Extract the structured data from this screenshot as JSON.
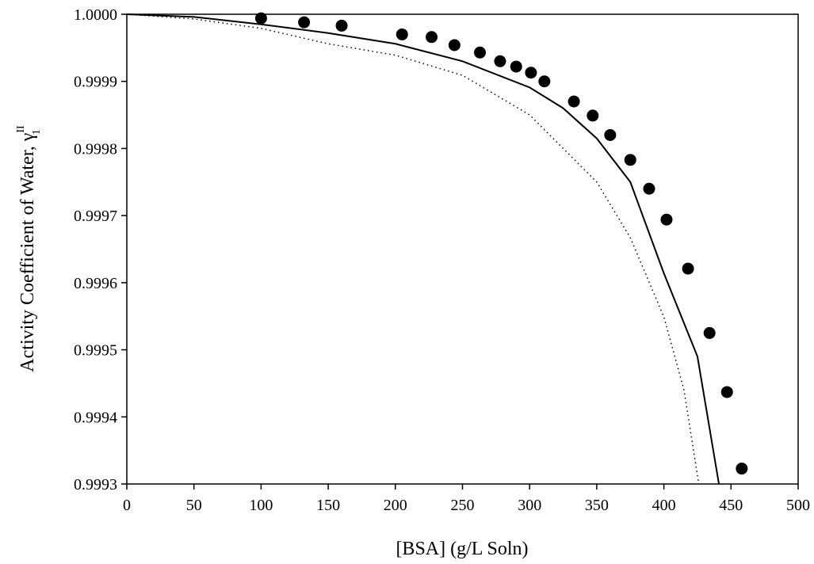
{
  "chart_data": {
    "type": "scatter",
    "x_label": "[BSA] (g/L Soln)",
    "y_label": "Activity  Coefficient  of  Water, γ",
    "y_label_sup": "II",
    "y_label_sub": "1",
    "xlim": [
      0,
      500
    ],
    "xticks": [
      0,
      50,
      100,
      150,
      200,
      250,
      300,
      350,
      400,
      450,
      500
    ],
    "ylim": [
      0.9993,
      1.0
    ],
    "yticks": [
      0.9993,
      0.9994,
      0.9995,
      0.9996,
      0.9997,
      0.9998,
      0.9999,
      {
        "value": 1.0,
        "label": "1.0000"
      }
    ],
    "series": [
      {
        "kind": "points",
        "color": "#000000",
        "x": [
          100,
          132,
          160,
          205,
          227,
          244,
          263,
          278,
          290,
          301,
          311,
          333,
          347,
          360,
          375,
          389,
          402,
          418,
          434,
          447,
          458
        ],
        "values": [
          0.999994,
          0.999988,
          0.999983,
          0.99997,
          0.999966,
          0.999954,
          0.999943,
          0.99993,
          0.999922,
          0.999913,
          0.9999,
          0.99987,
          0.999849,
          0.99982,
          0.999783,
          0.99974,
          0.999694,
          0.999621,
          0.999525,
          0.999437,
          0.999323
        ]
      },
      {
        "kind": "line",
        "dash": "solid",
        "color": "#000000",
        "x": [
          0,
          50,
          100,
          150,
          200,
          250,
          300,
          325,
          350,
          375,
          400,
          425,
          441
        ],
        "values": [
          1.0,
          0.999996,
          0.999985,
          0.999972,
          0.999956,
          0.99993,
          0.999891,
          0.99986,
          0.999815,
          0.99975,
          0.999614,
          0.99949,
          0.9993
        ]
      },
      {
        "kind": "line",
        "dash": "dotted",
        "color": "#000000",
        "x": [
          0,
          50,
          100,
          150,
          200,
          250,
          300,
          350,
          375,
          400,
          415,
          426
        ],
        "values": [
          1.0,
          0.999993,
          0.999979,
          0.999956,
          0.999939,
          0.999909,
          0.99985,
          0.99975,
          0.999667,
          0.999549,
          0.99944,
          0.9993
        ]
      }
    ]
  }
}
